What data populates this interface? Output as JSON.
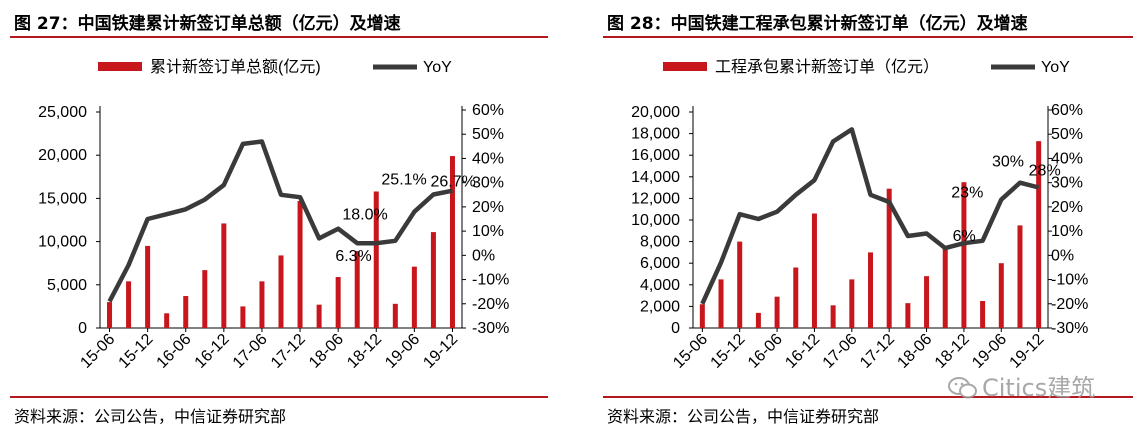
{
  "panels": [
    {
      "title": "图 27：中国铁建累计新签订单总额（亿元）及增速",
      "source": "资料来源：公司公告，中信证券研究部"
    },
    {
      "title": "图 28：中国铁建工程承包累计新签订单（亿元）及增速",
      "source": "资料来源：公司公告，中信证券研究部"
    }
  ],
  "watermark": "Citics建筑",
  "colors": {
    "bar": "#c8161d",
    "line": "#3a3a3a",
    "rule": "#b4171d"
  },
  "chart_data": [
    {
      "type": "bar",
      "x_ticks": [
        "15-06",
        "15-12",
        "16-06",
        "16-12",
        "17-06",
        "17-12",
        "18-06",
        "18-12",
        "19-06",
        "19-12"
      ],
      "categories": [
        "15-06",
        "15-09",
        "15-12",
        "16-03",
        "16-06",
        "16-09",
        "16-12",
        "17-03",
        "17-06",
        "17-09",
        "17-12",
        "18-03",
        "18-06",
        "18-09",
        "18-12",
        "19-03",
        "19-06",
        "19-09",
        "19-12"
      ],
      "series": [
        {
          "name": "累计新签订单总额(亿元)",
          "axis": "left",
          "kind": "bar",
          "values": [
            3000,
            5400,
            9500,
            1700,
            3700,
            6700,
            12100,
            2500,
            5400,
            8400,
            14700,
            2700,
            5900,
            8900,
            15800,
            2800,
            7100,
            11100,
            19900
          ]
        },
        {
          "name": "YoY",
          "axis": "right",
          "kind": "line",
          "values": [
            -19,
            -4,
            15,
            17,
            19,
            23,
            29,
            46,
            47,
            25,
            24,
            7,
            11,
            5,
            5,
            6,
            18,
            25.1,
            26.7
          ]
        }
      ],
      "left_axis": {
        "ylim": [
          0,
          25000
        ],
        "ticks": [
          "0",
          "5,000",
          "10,000",
          "15,000",
          "20,000",
          "25,000"
        ]
      },
      "right_axis": {
        "ylim": [
          -30,
          60
        ],
        "ticks": [
          "-30%",
          "-20%",
          "-10%",
          "0%",
          "10%",
          "20%",
          "30%",
          "40%",
          "50%",
          "60%"
        ]
      },
      "annotations": [
        {
          "text": "26.7%",
          "point": 18
        },
        {
          "text": "25.1%",
          "point": 17
        },
        {
          "text": "18.0%",
          "point": 16
        },
        {
          "text": "6.3%",
          "point": 15
        }
      ],
      "legend": "top"
    },
    {
      "type": "bar",
      "x_ticks": [
        "15-06",
        "15-12",
        "16-06",
        "16-12",
        "17-06",
        "17-12",
        "18-06",
        "18-12",
        "19-06",
        "19-12"
      ],
      "categories": [
        "15-06",
        "15-09",
        "15-12",
        "16-03",
        "16-06",
        "16-09",
        "16-12",
        "17-03",
        "17-06",
        "17-09",
        "17-12",
        "18-03",
        "18-06",
        "18-09",
        "18-12",
        "19-03",
        "19-06",
        "19-09",
        "19-12"
      ],
      "series": [
        {
          "name": "工程承包累计新签订单（亿元）",
          "axis": "left",
          "kind": "bar",
          "values": [
            2200,
            4500,
            8000,
            1400,
            2900,
            5600,
            10600,
            2100,
            4500,
            7000,
            12900,
            2300,
            4800,
            7400,
            13500,
            2500,
            6000,
            9500,
            17300
          ]
        },
        {
          "name": "YoY",
          "axis": "right",
          "kind": "line",
          "values": [
            -20,
            -3,
            17,
            15,
            18,
            25,
            31,
            47,
            52,
            25,
            22,
            8,
            9,
            3,
            5,
            6,
            23,
            30,
            28
          ]
        }
      ],
      "left_axis": {
        "ylim": [
          0,
          20000
        ],
        "ticks": [
          "0",
          "2,000",
          "4,000",
          "6,000",
          "8,000",
          "10,000",
          "12,000",
          "14,000",
          "16,000",
          "18,000",
          "20,000"
        ]
      },
      "right_axis": {
        "ylim": [
          -30,
          60
        ],
        "ticks": [
          "-30%",
          "-20%",
          "-10%",
          "0%",
          "10%",
          "20%",
          "30%",
          "40%",
          "50%",
          "60%"
        ]
      },
      "annotations": [
        {
          "text": "30%",
          "point": 17
        },
        {
          "text": "28%",
          "point": 18
        },
        {
          "text": "23%",
          "point": 16
        },
        {
          "text": "6%",
          "point": 15
        }
      ],
      "legend": "top"
    }
  ]
}
